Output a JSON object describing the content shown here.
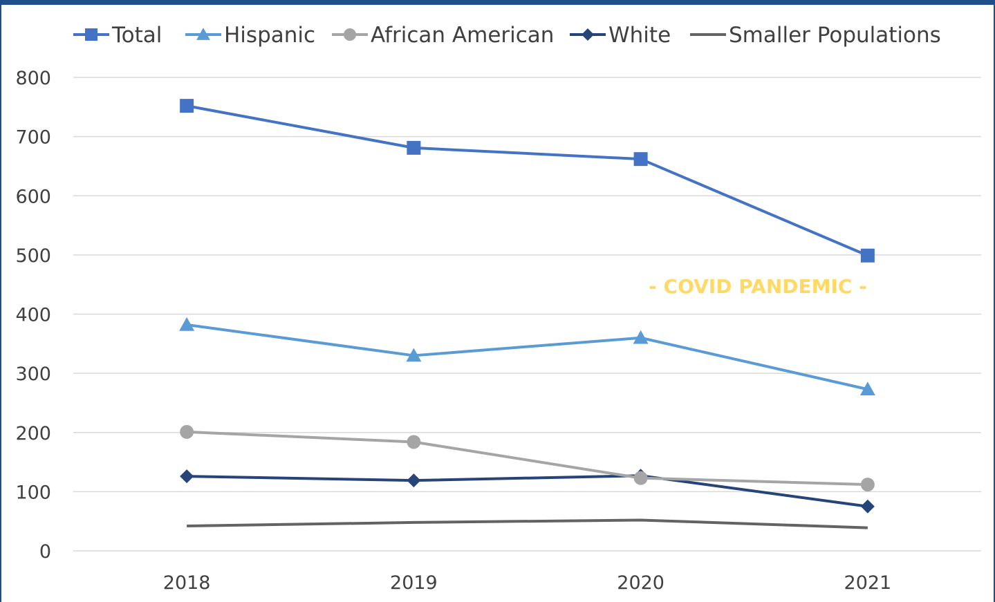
{
  "chart_data": {
    "type": "line",
    "categories": [
      "2018",
      "2019",
      "2020",
      "2021"
    ],
    "series": [
      {
        "name": "Total",
        "values": [
          752,
          681,
          662,
          499
        ],
        "color": "#4472c4",
        "marker": "square"
      },
      {
        "name": "Hispanic",
        "values": [
          382,
          330,
          360,
          273
        ],
        "color": "#5b9bd5",
        "marker": "triangle"
      },
      {
        "name": "African American",
        "values": [
          201,
          184,
          123,
          112
        ],
        "color": "#a5a5a5",
        "marker": "circle"
      },
      {
        "name": "White",
        "values": [
          126,
          119,
          127,
          75
        ],
        "color": "#264478",
        "marker": "diamond"
      },
      {
        "name": "Smaller Populations",
        "values": [
          42,
          48,
          52,
          39
        ],
        "color": "#636363",
        "marker": "none"
      }
    ],
    "y_ticks": [
      "0",
      "100",
      "200",
      "300",
      "400",
      "500",
      "600",
      "700",
      "800"
    ],
    "ylim": [
      0,
      800
    ],
    "grid": true,
    "legend_position": "top",
    "annotation": "- COVID PANDEMIC -",
    "annotation_color": "#ffd966"
  },
  "colors": {
    "frame": "#1f4e8c",
    "gridline": "#d9d9d9",
    "text": "#404040"
  }
}
